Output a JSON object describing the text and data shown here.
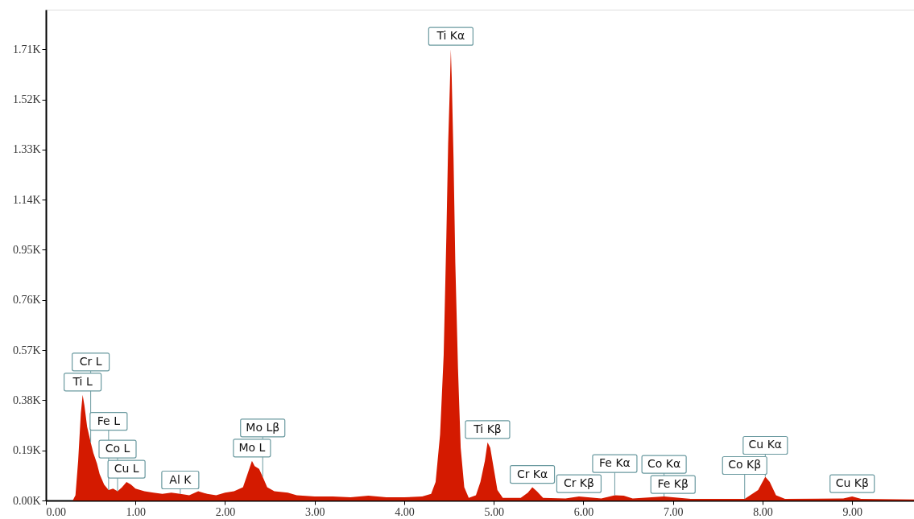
{
  "chart_data": {
    "type": "area",
    "color": "#d41a00",
    "grid": false,
    "xlim": [
      0,
      9.69
    ],
    "ylim": [
      0,
      1.86
    ],
    "xticks": [
      {
        "value": 0,
        "label": "0.00"
      },
      {
        "value": 1,
        "label": "1.00"
      },
      {
        "value": 2,
        "label": "2.00"
      },
      {
        "value": 3,
        "label": "3.00"
      },
      {
        "value": 4,
        "label": "4.00"
      },
      {
        "value": 5,
        "label": "5.00"
      },
      {
        "value": 6,
        "label": "6.00"
      },
      {
        "value": 7,
        "label": "7.00"
      },
      {
        "value": 8,
        "label": "8.00"
      },
      {
        "value": 9,
        "label": "9.00"
      }
    ],
    "yticks": [
      {
        "value": 0,
        "label": "0.00K"
      },
      {
        "value": 0.19,
        "label": "0.19K"
      },
      {
        "value": 0.38,
        "label": "0.38K"
      },
      {
        "value": 0.57,
        "label": "0.57K"
      },
      {
        "value": 0.76,
        "label": "0.76K"
      },
      {
        "value": 0.95,
        "label": "0.95K"
      },
      {
        "value": 1.14,
        "label": "1.14K"
      },
      {
        "value": 1.33,
        "label": "1.33K"
      },
      {
        "value": 1.52,
        "label": "1.52K"
      },
      {
        "value": 1.71,
        "label": "1.71K"
      }
    ],
    "x": [
      0.3,
      0.33,
      0.36,
      0.39,
      0.41,
      0.43,
      0.46,
      0.5,
      0.53,
      0.57,
      0.6,
      0.65,
      0.7,
      0.75,
      0.8,
      0.85,
      0.9,
      0.95,
      1.0,
      1.1,
      1.2,
      1.3,
      1.4,
      1.5,
      1.6,
      1.7,
      1.8,
      1.9,
      2.0,
      2.1,
      2.2,
      2.25,
      2.3,
      2.33,
      2.38,
      2.42,
      2.47,
      2.55,
      2.7,
      2.8,
      3.0,
      3.2,
      3.4,
      3.6,
      3.8,
      4.0,
      4.2,
      4.3,
      4.35,
      4.4,
      4.44,
      4.47,
      4.49,
      4.51,
      4.52,
      4.53,
      4.55,
      4.57,
      4.6,
      4.63,
      4.67,
      4.72,
      4.8,
      4.85,
      4.9,
      4.93,
      4.96,
      5.0,
      5.04,
      5.1,
      5.3,
      5.38,
      5.43,
      5.48,
      5.55,
      5.8,
      5.95,
      6.05,
      6.2,
      6.35,
      6.45,
      6.55,
      6.9,
      7.0,
      7.2,
      7.8,
      7.95,
      8.03,
      8.08,
      8.15,
      8.25,
      8.9,
      9.0,
      9.1,
      9.69
    ],
    "values": [
      0,
      0.02,
      0.15,
      0.33,
      0.4,
      0.36,
      0.28,
      0.22,
      0.18,
      0.14,
      0.1,
      0.06,
      0.04,
      0.045,
      0.035,
      0.05,
      0.07,
      0.06,
      0.045,
      0.035,
      0.03,
      0.025,
      0.03,
      0.025,
      0.02,
      0.035,
      0.025,
      0.02,
      0.03,
      0.035,
      0.05,
      0.1,
      0.15,
      0.13,
      0.12,
      0.09,
      0.05,
      0.035,
      0.03,
      0.02,
      0.015,
      0.015,
      0.012,
      0.018,
      0.012,
      0.012,
      0.015,
      0.025,
      0.07,
      0.25,
      0.55,
      1.0,
      1.35,
      1.58,
      1.71,
      1.6,
      1.3,
      0.9,
      0.5,
      0.2,
      0.05,
      0.01,
      0.02,
      0.07,
      0.15,
      0.22,
      0.2,
      0.12,
      0.04,
      0.01,
      0.01,
      0.03,
      0.05,
      0.035,
      0.01,
      0.008,
      0.015,
      0.012,
      0.008,
      0.02,
      0.018,
      0.008,
      0.015,
      0.012,
      0.006,
      0.006,
      0.04,
      0.09,
      0.07,
      0.02,
      0.006,
      0.008,
      0.015,
      0.006,
      0.004
    ],
    "annotations": [
      {
        "text": "Ti L",
        "x": 0.41,
        "y": 0.4
      },
      {
        "text": "Cr L",
        "x": 0.5,
        "y": 0.22
      },
      {
        "text": "Cu L",
        "x": 0.9,
        "y": 0.07
      },
      {
        "text": "Co L",
        "x": 0.8,
        "y": 0.035
      },
      {
        "text": "Fe L",
        "x": 0.7,
        "y": 0.04
      },
      {
        "text": "Al K",
        "x": 1.5,
        "y": 0.025
      },
      {
        "text": "Mo L",
        "x": 2.3,
        "y": 0.15
      },
      {
        "text": "Mo Lβ",
        "x": 2.42,
        "y": 0.09
      },
      {
        "text": "Ti Kα",
        "x": 4.52,
        "y": 1.71
      },
      {
        "text": "Ti Kβ",
        "x": 4.93,
        "y": 0.22
      },
      {
        "text": "Cr Kα",
        "x": 5.43,
        "y": 0.05
      },
      {
        "text": "Cr Kβ",
        "x": 5.95,
        "y": 0.015
      },
      {
        "text": "Fe Kα",
        "x": 6.35,
        "y": 0.02
      },
      {
        "text": "Fe Kβ",
        "x": 7.0,
        "y": 0.012
      },
      {
        "text": "Co Kα",
        "x": 6.9,
        "y": 0.015
      },
      {
        "text": "Co Kβ",
        "x": 7.8,
        "y": 0.006
      },
      {
        "text": "Cu Kα",
        "x": 8.03,
        "y": 0.09
      },
      {
        "text": "Cu Kβ",
        "x": 9.0,
        "y": 0.015
      }
    ]
  }
}
